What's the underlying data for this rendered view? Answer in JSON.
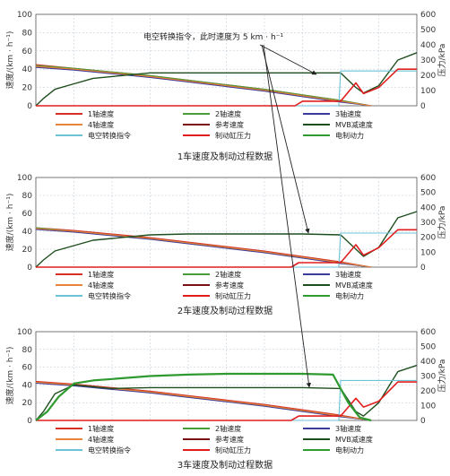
{
  "annotation": {
    "text": "电空转换指令，此时速度为 5 km · h⁻¹"
  },
  "chart_data": [
    {
      "type": "line",
      "caption": "1车速度及制动过程数据",
      "ylabel_left": "速度/(km · h⁻¹)",
      "ylabel_right": "压力/kPa",
      "ylim_left": [
        0,
        100
      ],
      "ylim_right": [
        0,
        600
      ],
      "yticks_left": [
        "0",
        "20",
        "40",
        "60",
        "80",
        "100"
      ],
      "yticks_right": [
        "0",
        "100",
        "200",
        "300",
        "400",
        "500",
        "600"
      ],
      "grid": true,
      "legend_position": "bottom",
      "legend": [
        {
          "label": "1轴速度",
          "color": "#d73027"
        },
        {
          "label": "2轴速度",
          "color": "#4a9b3a"
        },
        {
          "label": "3轴速度",
          "color": "#3b3b9c"
        },
        {
          "label": "4轴速度",
          "color": "#e8833a"
        },
        {
          "label": "参考速度",
          "color": "#7a1010"
        },
        {
          "label": "MVB减速度",
          "color": "#1e4e1e"
        },
        {
          "label": "电空转换指令",
          "color": "#6cc3d5"
        },
        {
          "label": "制动缸压力",
          "color": "#e01e1e"
        },
        {
          "label": "电制动力",
          "color": "#2f9a2f"
        }
      ],
      "series": [
        {
          "name": "参考速度",
          "axis": "left",
          "x": [
            0,
            0.1,
            0.2,
            0.3,
            0.4,
            0.5,
            0.6,
            0.7,
            0.8,
            0.88
          ],
          "y": [
            43,
            40,
            36,
            32,
            27,
            22,
            17,
            11,
            5,
            0
          ]
        },
        {
          "name": "1轴速度",
          "axis": "left",
          "x": [
            0,
            0.1,
            0.2,
            0.3,
            0.4,
            0.5,
            0.6,
            0.7,
            0.8,
            0.88
          ],
          "y": [
            45,
            41,
            37,
            33,
            28,
            23,
            18,
            12,
            6,
            0
          ]
        },
        {
          "name": "2轴速度",
          "axis": "left",
          "x": [
            0,
            0.1,
            0.2,
            0.3,
            0.4,
            0.5,
            0.6,
            0.7,
            0.8,
            0.88
          ],
          "y": [
            44,
            41,
            37,
            33,
            28,
            23,
            18,
            12,
            6,
            0
          ]
        },
        {
          "name": "3轴速度",
          "axis": "left",
          "x": [
            0,
            0.1,
            0.2,
            0.3,
            0.4,
            0.5,
            0.6,
            0.7,
            0.8,
            0.88
          ],
          "y": [
            42,
            39,
            35,
            31,
            26,
            21,
            16,
            10,
            4,
            0
          ]
        },
        {
          "name": "4轴速度",
          "axis": "left",
          "x": [
            0,
            0.1,
            0.2,
            0.3,
            0.4,
            0.5,
            0.6,
            0.7,
            0.8,
            0.88
          ],
          "y": [
            43,
            40,
            36,
            32,
            27,
            22,
            17,
            11,
            5,
            0
          ]
        },
        {
          "name": "MVB减速度",
          "axis": "left",
          "x": [
            0,
            0.02,
            0.05,
            0.1,
            0.15,
            0.2,
            0.3,
            0.4,
            0.5,
            0.6,
            0.7,
            0.8,
            0.84,
            0.86,
            0.9,
            0.95,
            1.0
          ],
          "y": [
            0,
            8,
            18,
            24,
            30,
            32,
            36,
            36,
            36,
            36,
            36,
            36,
            20,
            14,
            22,
            50,
            58
          ]
        },
        {
          "name": "电空转换指令",
          "axis": "left",
          "x": [
            0,
            0.795,
            0.8,
            1.0
          ],
          "y": [
            0,
            0,
            38,
            38
          ]
        },
        {
          "name": "制动缸压力",
          "axis": "right",
          "x": [
            0,
            0.68,
            0.7,
            0.8,
            0.84,
            0.86,
            0.9,
            0.95,
            1.0
          ],
          "y": [
            0,
            0,
            30,
            30,
            150,
            80,
            120,
            240,
            240
          ]
        },
        {
          "name": "电制动力",
          "axis": "right",
          "x": [],
          "y": []
        }
      ]
    },
    {
      "type": "line",
      "caption": "2车速度及制动过程数据",
      "ylabel_left": "速度/(km · h⁻¹)",
      "ylabel_right": "压力/kPa",
      "ylim_left": [
        0,
        100
      ],
      "ylim_right": [
        0,
        600
      ],
      "yticks_left": [
        "0",
        "20",
        "40",
        "60",
        "80",
        "100"
      ],
      "yticks_right": [
        "0",
        "100",
        "200",
        "300",
        "400",
        "500",
        "600"
      ],
      "grid": true,
      "legend_position": "bottom",
      "legend": [
        {
          "label": "1轴速度",
          "color": "#d73027"
        },
        {
          "label": "2轴速度",
          "color": "#4a9b3a"
        },
        {
          "label": "3轴速度",
          "color": "#3b3b9c"
        },
        {
          "label": "4轴速度",
          "color": "#e8833a"
        },
        {
          "label": "参考速度",
          "color": "#7a1010"
        },
        {
          "label": "MVB减速度",
          "color": "#1e4e1e"
        },
        {
          "label": "电空转换指令",
          "color": "#6cc3d5"
        },
        {
          "label": "制动缸压力",
          "color": "#e01e1e"
        },
        {
          "label": "电制动力",
          "color": "#2f9a2f"
        }
      ],
      "series": [
        {
          "name": "参考速度",
          "axis": "left",
          "x": [
            0,
            0.1,
            0.2,
            0.3,
            0.4,
            0.5,
            0.6,
            0.7,
            0.8,
            0.88
          ],
          "y": [
            43,
            40,
            36,
            32,
            27,
            22,
            17,
            11,
            5,
            0
          ]
        },
        {
          "name": "1轴速度",
          "axis": "left",
          "x": [
            0,
            0.1,
            0.2,
            0.3,
            0.4,
            0.5,
            0.6,
            0.7,
            0.8,
            0.88
          ],
          "y": [
            44,
            41,
            37,
            33,
            28,
            23,
            18,
            12,
            6,
            0
          ]
        },
        {
          "name": "2轴速度",
          "axis": "left",
          "x": [
            0,
            0.1,
            0.2,
            0.3,
            0.4,
            0.5,
            0.6,
            0.7,
            0.8,
            0.88
          ],
          "y": [
            44,
            40,
            36,
            32,
            27,
            22,
            17,
            11,
            5,
            0
          ]
        },
        {
          "name": "3轴速度",
          "axis": "left",
          "x": [
            0,
            0.1,
            0.2,
            0.3,
            0.4,
            0.5,
            0.6,
            0.7,
            0.8,
            0.88
          ],
          "y": [
            42,
            39,
            35,
            31,
            26,
            21,
            16,
            10,
            4,
            0
          ]
        },
        {
          "name": "4轴速度",
          "axis": "left",
          "x": [
            0,
            0.1,
            0.2,
            0.3,
            0.4,
            0.5,
            0.6,
            0.7,
            0.8,
            0.88
          ],
          "y": [
            43,
            40,
            36,
            32,
            27,
            22,
            17,
            11,
            5,
            0
          ]
        },
        {
          "name": "MVB减速度",
          "axis": "left",
          "x": [
            0,
            0.02,
            0.05,
            0.1,
            0.15,
            0.2,
            0.3,
            0.4,
            0.5,
            0.6,
            0.7,
            0.8,
            0.84,
            0.86,
            0.9,
            0.95,
            1.0
          ],
          "y": [
            0,
            8,
            18,
            24,
            30,
            32,
            36,
            37,
            37,
            37,
            37,
            36,
            20,
            12,
            22,
            55,
            62
          ]
        },
        {
          "name": "电空转换指令",
          "axis": "left",
          "x": [
            0,
            0.795,
            0.8,
            1.0
          ],
          "y": [
            0,
            0,
            38,
            38
          ]
        },
        {
          "name": "制动缸压力",
          "axis": "right",
          "x": [
            0,
            0.67,
            0.69,
            0.8,
            0.84,
            0.86,
            0.9,
            0.95,
            1.0
          ],
          "y": [
            0,
            0,
            30,
            30,
            150,
            80,
            130,
            250,
            250
          ]
        },
        {
          "name": "电制动力",
          "axis": "right",
          "x": [],
          "y": []
        }
      ]
    },
    {
      "type": "line",
      "caption": "3车速度及制动过程数据",
      "ylabel_left": "速度/(km · h⁻¹)",
      "ylabel_right": "压力/kPa",
      "ylim_left": [
        0,
        100
      ],
      "ylim_right": [
        0,
        600
      ],
      "yticks_left": [
        "0",
        "20",
        "40",
        "60",
        "80",
        "100"
      ],
      "yticks_right": [
        "0",
        "100",
        "200",
        "300",
        "400",
        "500",
        "600"
      ],
      "grid": true,
      "legend_position": "bottom",
      "legend": [
        {
          "label": "1轴速度",
          "color": "#d73027"
        },
        {
          "label": "2轴速度",
          "color": "#4a9b3a"
        },
        {
          "label": "3轴速度",
          "color": "#3b3b9c"
        },
        {
          "label": "4轴速度",
          "color": "#e8833a"
        },
        {
          "label": "参考速度",
          "color": "#7a1010"
        },
        {
          "label": "MVB减速度",
          "color": "#1e4e1e"
        },
        {
          "label": "电空转换指令",
          "color": "#6cc3d5"
        },
        {
          "label": "制动缸压力",
          "color": "#e01e1e"
        },
        {
          "label": "电制动力",
          "color": "#2f9a2f"
        }
      ],
      "series": [
        {
          "name": "参考速度",
          "axis": "left",
          "x": [
            0,
            0.1,
            0.2,
            0.3,
            0.4,
            0.5,
            0.6,
            0.7,
            0.8,
            0.88
          ],
          "y": [
            43,
            40,
            36,
            32,
            27,
            22,
            17,
            11,
            5,
            0
          ]
        },
        {
          "name": "1轴速度",
          "axis": "left",
          "x": [
            0,
            0.1,
            0.2,
            0.3,
            0.4,
            0.5,
            0.6,
            0.7,
            0.8,
            0.88
          ],
          "y": [
            44,
            41,
            37,
            33,
            28,
            23,
            18,
            12,
            6,
            0
          ]
        },
        {
          "name": "2轴速度",
          "axis": "left",
          "x": [
            0,
            0.1,
            0.2,
            0.3,
            0.4,
            0.5,
            0.6,
            0.7,
            0.8,
            0.88
          ],
          "y": [
            43,
            40,
            36,
            32,
            27,
            22,
            17,
            11,
            5,
            0
          ]
        },
        {
          "name": "3轴速度",
          "axis": "left",
          "x": [
            0,
            0.1,
            0.2,
            0.3,
            0.4,
            0.5,
            0.6,
            0.7,
            0.8,
            0.88
          ],
          "y": [
            42,
            39,
            35,
            31,
            26,
            21,
            16,
            10,
            4,
            0
          ]
        },
        {
          "name": "4轴速度",
          "axis": "left",
          "x": [
            0,
            0.1,
            0.2,
            0.3,
            0.4,
            0.5,
            0.6,
            0.7,
            0.8,
            0.88
          ],
          "y": [
            43,
            40,
            36,
            32,
            27,
            22,
            17,
            11,
            5,
            0
          ]
        },
        {
          "name": "MVB减速度",
          "axis": "left",
          "x": [
            0,
            0.02,
            0.05,
            0.1,
            0.15,
            0.2,
            0.3,
            0.4,
            0.5,
            0.6,
            0.7,
            0.8,
            0.84,
            0.86,
            0.9,
            0.95,
            1.0
          ],
          "y": [
            0,
            10,
            30,
            40,
            38,
            36,
            37,
            37,
            37,
            37,
            37,
            36,
            10,
            5,
            20,
            55,
            62
          ]
        },
        {
          "name": "电空转换指令",
          "axis": "left",
          "x": [
            0,
            0.795,
            0.8,
            1.0
          ],
          "y": [
            0,
            0,
            45,
            45
          ]
        },
        {
          "name": "制动缸压力",
          "axis": "right",
          "x": [
            0,
            0.67,
            0.69,
            0.8,
            0.84,
            0.86,
            0.9,
            0.95,
            1.0
          ],
          "y": [
            0,
            0,
            30,
            30,
            150,
            90,
            130,
            260,
            260
          ]
        },
        {
          "name": "电制动力",
          "axis": "right",
          "x": [
            0,
            0.03,
            0.06,
            0.1,
            0.15,
            0.2,
            0.3,
            0.4,
            0.5,
            0.6,
            0.7,
            0.78,
            0.82,
            0.85,
            0.88
          ],
          "y": [
            0,
            60,
            160,
            250,
            270,
            280,
            300,
            310,
            315,
            315,
            315,
            310,
            120,
            20,
            0
          ]
        }
      ]
    }
  ]
}
